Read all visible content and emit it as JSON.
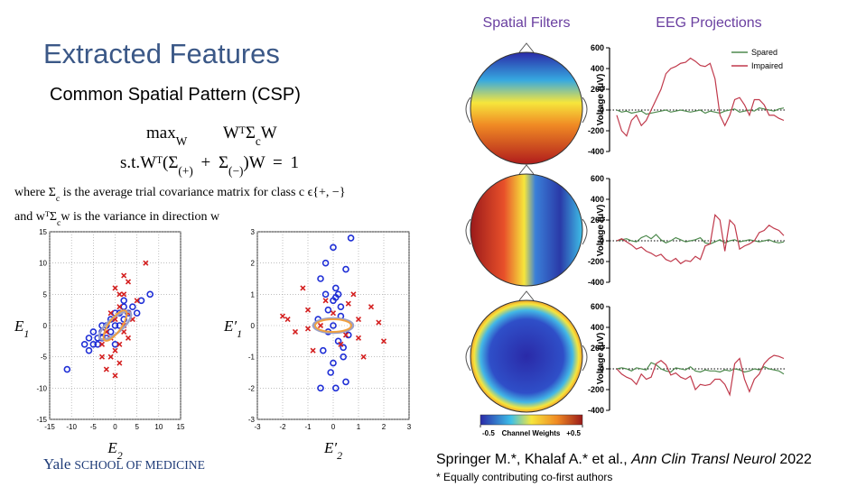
{
  "title": "Extracted Features",
  "subtitle": "Common Spatial Pattern (CSP)",
  "equation1": {
    "op": "max",
    "op_sub": "W",
    "expr_a": "WᵀΣ",
    "expr_sub": "c",
    "expr_b": "W"
  },
  "equation2": {
    "st": "s.t.",
    "a": "Wᵀ(Σ",
    "sub1": "(+)",
    "b": " + Σ",
    "sub2": "(−)",
    "c": ")W = 1"
  },
  "note1": {
    "a": "where Σ",
    "sub": "c",
    "b": " is the average trial covariance matrix for class c ϵ{+, −}"
  },
  "note2": {
    "a": "and wᵀΣ",
    "sub": "c",
    "b": "w is the variance in direction w"
  },
  "scatter_left": {
    "type": "scatter",
    "ylabel": {
      "a": "E",
      "sub": "1"
    },
    "xlabel": {
      "a": "E",
      "sub": "2"
    },
    "xlim": [
      -15,
      15
    ],
    "xticks": [
      -15,
      -10,
      -5,
      0,
      5,
      10,
      15
    ],
    "ylim": [
      -15,
      15
    ],
    "yticks": [
      -15,
      -10,
      -5,
      0,
      5,
      10,
      15
    ],
    "grid": true,
    "series": [
      {
        "color": "#1f2fd6",
        "marker": "o",
        "x": [
          -11,
          -7,
          -6,
          -5,
          -5,
          -4,
          -4,
          -3,
          -3,
          -2,
          -2,
          -1,
          -1,
          0,
          0,
          1,
          1,
          2,
          2,
          3,
          4,
          5,
          6,
          8,
          -6,
          -3,
          0,
          2
        ],
        "y": [
          -7,
          -3,
          -2,
          -3,
          -1,
          -2,
          -3,
          -1,
          -2,
          -2,
          0,
          -1,
          1,
          0,
          2,
          0,
          2,
          1,
          3,
          2,
          3,
          2,
          4,
          5,
          -4,
          0,
          -3,
          4
        ]
      },
      {
        "color": "#d42020",
        "marker": "x",
        "x": [
          -3,
          -2,
          -1,
          -1,
          0,
          0,
          1,
          1,
          2,
          2,
          3,
          3,
          4,
          7,
          -2,
          0,
          1,
          2,
          -1,
          3,
          0,
          5,
          -3,
          1,
          2
        ],
        "y": [
          -3,
          -1,
          -5,
          -2,
          -4,
          1,
          3,
          -6,
          5,
          -1,
          7,
          2,
          1,
          10,
          -7,
          6,
          -3,
          8,
          2,
          -2,
          -8,
          4,
          -5,
          5,
          0
        ]
      }
    ]
  },
  "scatter_right": {
    "type": "scatter",
    "ylabel": {
      "a": "E′",
      "sub": "1"
    },
    "xlabel": {
      "a": "E′",
      "sub": "2"
    },
    "xlim": [
      -3,
      3
    ],
    "xticks": [
      -3,
      -2,
      -1,
      0,
      1,
      2,
      3
    ],
    "ylim": [
      -3,
      3
    ],
    "yticks": [
      -3,
      -2,
      -1,
      0,
      1,
      2,
      3
    ],
    "grid": true,
    "series": [
      {
        "color": "#1f2fd6",
        "marker": "o",
        "x": [
          -0.5,
          -0.3,
          -0.2,
          0,
          0,
          0.1,
          0.2,
          0.3,
          0.4,
          0.5,
          -0.4,
          -0.1,
          0,
          0.1,
          0.3,
          -0.2,
          0.2,
          0.6,
          -0.6,
          0,
          0.1,
          -0.3,
          0.5,
          0.7,
          0.4,
          -0.5
        ],
        "y": [
          1.5,
          1,
          0.5,
          0,
          0.8,
          1.2,
          -0.5,
          0.3,
          -1,
          1.8,
          -0.8,
          -1.5,
          2.5,
          -2,
          0.6,
          -0.2,
          1,
          -0.3,
          0.2,
          -1.2,
          0.9,
          2,
          -1.8,
          2.8,
          -0.7,
          -2
        ]
      },
      {
        "color": "#d42020",
        "marker": "x",
        "x": [
          -2,
          -1.5,
          -1,
          -0.5,
          0,
          0.5,
          1,
          1.5,
          2,
          -1.2,
          -0.8,
          0.8,
          1.2,
          -1.8,
          1.8,
          0.3,
          -0.3,
          1,
          -1,
          0.6
        ],
        "y": [
          0.3,
          -0.2,
          0.5,
          0,
          0.4,
          -0.3,
          0.2,
          0.6,
          -0.5,
          1.2,
          -0.8,
          1,
          -1,
          0.2,
          0.1,
          -0.6,
          0.8,
          -0.4,
          -0.1,
          0.7
        ]
      }
    ]
  },
  "spatial_filters_header": "Spatial Filters",
  "eeg_header": "EEG Projections",
  "colorbar": {
    "label": "Channel Weights",
    "lim": [
      -0.5,
      0.5
    ],
    "ticks": [
      -0.5,
      {
        "value": 0.5,
        "label": "+0.5"
      }
    ]
  },
  "eeg_charts": [
    {
      "type": "line",
      "ylabel": "Voltage (μV)",
      "ylim": [
        -400,
        600
      ],
      "yticks": [
        -400,
        -200,
        0,
        200,
        400,
        600
      ],
      "legend": "top-right",
      "series": [
        {
          "name": "Spared",
          "color": "#4e8a4e",
          "values": [
            0,
            -20,
            -10,
            -30,
            -20,
            -10,
            -40,
            -30,
            -20,
            -10,
            0,
            -20,
            -10,
            0,
            -10,
            -20,
            -10,
            0,
            -30,
            -10,
            -20,
            -30,
            -10,
            0,
            10,
            -20,
            -10,
            0,
            -10,
            20,
            10,
            0,
            -10,
            10,
            20
          ]
        },
        {
          "name": "Impaired",
          "color": "#c0394b",
          "values": [
            -50,
            -200,
            -250,
            -100,
            -50,
            -150,
            -100,
            0,
            100,
            200,
            350,
            400,
            420,
            450,
            460,
            500,
            470,
            430,
            420,
            450,
            300,
            -50,
            -150,
            -50,
            100,
            120,
            50,
            -50,
            100,
            100,
            50,
            -50,
            -50,
            -80,
            -100
          ]
        }
      ]
    },
    {
      "type": "line",
      "ylabel": "Voltage (μV)",
      "ylim": [
        -400,
        600
      ],
      "yticks": [
        -400,
        -200,
        0,
        200,
        400,
        600
      ],
      "series": [
        {
          "color": "#4e8a4e",
          "values": [
            0,
            10,
            20,
            0,
            -10,
            30,
            50,
            20,
            60,
            10,
            -20,
            0,
            30,
            10,
            -10,
            0,
            10,
            30,
            -20,
            -30,
            -10,
            10,
            -20,
            0,
            10,
            -10,
            0,
            10,
            0,
            -10,
            0,
            10,
            -10,
            -20,
            -10
          ]
        },
        {
          "color": "#c0394b",
          "values": [
            0,
            20,
            -10,
            -40,
            -80,
            -60,
            -100,
            -120,
            -150,
            -130,
            -180,
            -200,
            -170,
            -220,
            -190,
            -200,
            -150,
            -180,
            -50,
            -30,
            250,
            200,
            -100,
            200,
            150,
            -80,
            -50,
            -30,
            0,
            80,
            100,
            150,
            120,
            100,
            50
          ]
        }
      ]
    },
    {
      "type": "line",
      "ylabel": "Voltage (μV)",
      "ylim": [
        -400,
        600
      ],
      "yticks": [
        -400,
        -200,
        0,
        200,
        400,
        600
      ],
      "series": [
        {
          "color": "#4e8a4e",
          "values": [
            0,
            10,
            0,
            -20,
            10,
            0,
            -10,
            60,
            40,
            0,
            -20,
            -30,
            10,
            0,
            -10,
            20,
            -20,
            -30,
            -10,
            -20,
            -20,
            -30,
            -10,
            -20,
            0,
            -10,
            -30,
            -20,
            0,
            -10,
            20,
            0,
            -10,
            -20,
            -50
          ]
        },
        {
          "color": "#c0394b",
          "values": [
            0,
            -50,
            -80,
            -100,
            -150,
            -50,
            -100,
            -80,
            50,
            80,
            40,
            -60,
            -40,
            -80,
            -100,
            -70,
            -200,
            -150,
            -160,
            -150,
            -100,
            -100,
            -150,
            -250,
            50,
            100,
            -100,
            -220,
            -100,
            -50,
            50,
            100,
            130,
            120,
            100
          ]
        }
      ]
    }
  ],
  "citation": {
    "a": "Springer M.*, Khalaf A.* et al., ",
    "journal": "Ann Clin Transl Neurol",
    "b": " 2022"
  },
  "footnote": "* Equally contributing co-first authors",
  "logo": {
    "a": "Yale",
    "b": "SCHOOL OF MEDICINE"
  }
}
